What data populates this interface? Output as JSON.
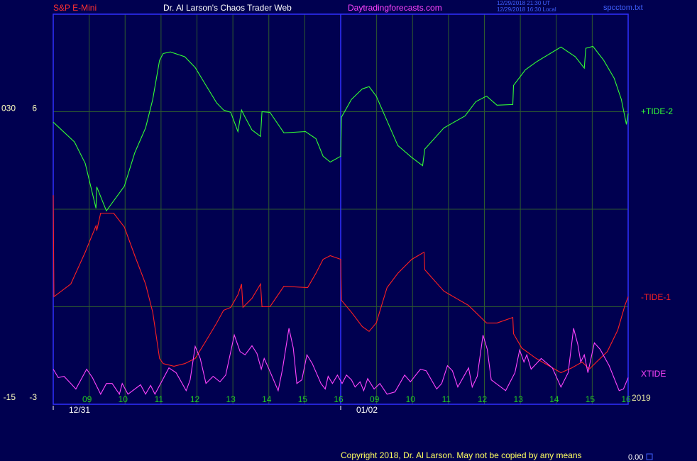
{
  "chart_data": {
    "type": "line",
    "instrument": "S&P E-Mini",
    "title": "Dr. Al Larson's Chaos Trader Web",
    "website": "Daytradingforecasts.com",
    "timestamps": [
      "12/29/2018 21:30 UT",
      "12/29/2018 16:30 Local"
    ],
    "file_name": "spcctom.txt",
    "year": "2019",
    "copyright": "Copyright 2018, Dr. Al Larson. May not be copied by any means",
    "status_value": "0.00",
    "xlim": [
      0,
      16
    ],
    "xticks": [
      {
        "value": 1,
        "label": "09"
      },
      {
        "value": 2,
        "label": "10"
      },
      {
        "value": 3,
        "label": "11"
      },
      {
        "value": 4,
        "label": "12"
      },
      {
        "value": 5,
        "label": "13"
      },
      {
        "value": 6,
        "label": "14"
      },
      {
        "value": 7,
        "label": "15"
      },
      {
        "value": 8,
        "label": "16"
      },
      {
        "value": 9,
        "label": "09"
      },
      {
        "value": 10,
        "label": "10"
      },
      {
        "value": 11,
        "label": "11"
      },
      {
        "value": 12,
        "label": "12"
      },
      {
        "value": 13,
        "label": "13"
      },
      {
        "value": 14,
        "label": "14"
      },
      {
        "value": 15,
        "label": "15"
      },
      {
        "value": 16,
        "label": "16"
      }
    ],
    "date_ticks": [
      {
        "value": 0,
        "label": "12/31"
      },
      {
        "value": 8,
        "label": "01/02"
      }
    ],
    "ylim": [
      -3,
      9
    ],
    "yticks": [
      6,
      -3
    ],
    "grid_y": [
      0,
      3,
      6
    ],
    "y2lim": [
      -15,
      45
    ],
    "y2ticks": [
      {
        "value": 30,
        "label": "030"
      },
      -15
    ],
    "grid": true,
    "series": [
      {
        "name": "+TIDE-2",
        "color": "#33ff33",
        "x": [
          0,
          0.59,
          0.89,
          1.19,
          1.21,
          1.48,
          1.98,
          2.27,
          2.57,
          2.77,
          2.96,
          3.06,
          3.26,
          3.66,
          3.95,
          4.25,
          4.55,
          4.74,
          4.94,
          5.14,
          5.24,
          5.34,
          5.53,
          5.77,
          5.81,
          6.03,
          6.42,
          7.02,
          7.31,
          7.51,
          7.71,
          8.0,
          8.02,
          8.3,
          8.6,
          8.79,
          8.99,
          9.29,
          9.59,
          9.98,
          10.28,
          10.34,
          10.87,
          11.46,
          11.76,
          12.06,
          12.35,
          12.79,
          12.81,
          13.14,
          13.44,
          13.83,
          14.13,
          14.53,
          14.78,
          14.82,
          15.02,
          15.32,
          15.61,
          15.81,
          15.95,
          16.0
        ],
        "values": [
          5.68,
          5.07,
          4.41,
          3.03,
          3.69,
          2.95,
          3.71,
          4.74,
          5.5,
          6.38,
          7.58,
          7.79,
          7.84,
          7.69,
          7.36,
          6.81,
          6.27,
          6.05,
          5.98,
          5.39,
          6.05,
          5.83,
          5.44,
          5.24,
          6.0,
          5.98,
          5.35,
          5.39,
          5.17,
          4.63,
          4.45,
          4.63,
          5.83,
          6.38,
          6.7,
          6.77,
          6.48,
          5.72,
          4.96,
          4.59,
          4.34,
          4.85,
          5.5,
          5.87,
          6.31,
          6.48,
          6.2,
          6.22,
          6.81,
          7.29,
          7.53,
          7.79,
          7.99,
          7.69,
          7.34,
          7.95,
          8.01,
          7.58,
          7.03,
          6.38,
          5.61,
          5.94
        ]
      },
      {
        "name": "-TIDE-1",
        "color": "#ff2020",
        "x": [
          0,
          0.02,
          0.49,
          0.89,
          1.19,
          1.21,
          1.32,
          1.68,
          1.98,
          2.27,
          2.57,
          2.77,
          2.96,
          3.06,
          3.36,
          3.66,
          3.95,
          4.25,
          4.55,
          4.74,
          4.94,
          5.14,
          5.24,
          5.28,
          5.53,
          5.77,
          5.81,
          6.03,
          6.42,
          7.08,
          7.31,
          7.51,
          7.71,
          8.0,
          8.02,
          8.3,
          8.6,
          8.79,
          8.99,
          9.29,
          9.59,
          9.98,
          10.32,
          10.34,
          10.87,
          11.56,
          12.06,
          12.35,
          12.79,
          12.81,
          13.04,
          13.44,
          14.13,
          14.43,
          14.72,
          14.92,
          15.12,
          15.42,
          15.71,
          15.91,
          16.0
        ],
        "values": [
          3.43,
          0.31,
          0.7,
          1.68,
          2.49,
          2.34,
          2.88,
          2.88,
          2.45,
          1.57,
          0.7,
          -0.17,
          -1.59,
          -1.75,
          -1.83,
          -1.75,
          -1.59,
          -1.05,
          -0.5,
          -0.11,
          -0.02,
          0.37,
          0.7,
          -0.02,
          0.26,
          0.7,
          0.0,
          0.0,
          0.63,
          0.59,
          1.03,
          1.46,
          1.57,
          1.46,
          0.2,
          -0.17,
          -0.61,
          -0.76,
          -0.5,
          0.59,
          1.03,
          1.46,
          1.68,
          1.14,
          0.48,
          0.04,
          -0.5,
          -0.5,
          -0.33,
          -0.83,
          -1.27,
          -1.59,
          -2.03,
          -1.88,
          -1.7,
          -1.92,
          -1.7,
          -1.38,
          -0.72,
          0.04,
          0.31
        ]
      },
      {
        "name": "XTIDE",
        "color": "#ff44ff",
        "x": [
          0,
          0.14,
          0.3,
          0.49,
          0.63,
          0.93,
          1.09,
          1.32,
          1.48,
          1.64,
          1.84,
          1.92,
          2.08,
          2.43,
          2.57,
          2.71,
          2.83,
          3.22,
          3.42,
          3.7,
          3.81,
          3.95,
          4.09,
          4.25,
          4.45,
          4.64,
          4.8,
          5.04,
          5.2,
          5.34,
          5.53,
          5.67,
          5.79,
          5.87,
          5.99,
          6.26,
          6.38,
          6.56,
          6.68,
          6.78,
          6.92,
          7.06,
          7.21,
          7.45,
          7.57,
          7.65,
          7.77,
          7.91,
          8.04,
          8.16,
          8.3,
          8.4,
          8.54,
          8.64,
          8.75,
          8.93,
          9.09,
          9.29,
          9.51,
          9.78,
          9.94,
          10.22,
          10.38,
          10.67,
          10.81,
          10.97,
          11.11,
          11.26,
          11.56,
          11.66,
          11.8,
          11.96,
          12.08,
          12.19,
          12.59,
          12.85,
          12.98,
          13.1,
          13.18,
          13.3,
          13.58,
          13.89,
          14.13,
          14.33,
          14.48,
          14.6,
          14.68,
          14.78,
          14.88,
          15.06,
          15.22,
          15.47,
          15.75,
          15.87,
          16.0
        ],
        "values": [
          -1.92,
          -2.18,
          -2.14,
          -2.36,
          -2.53,
          -1.92,
          -2.18,
          -2.69,
          -2.36,
          -2.36,
          -2.69,
          -2.36,
          -2.69,
          -2.4,
          -2.69,
          -2.42,
          -2.69,
          -1.88,
          -2.03,
          -2.58,
          -2.25,
          -1.22,
          -1.59,
          -2.36,
          -2.14,
          -2.31,
          -2.1,
          -0.87,
          -1.38,
          -1.48,
          -1.2,
          -1.44,
          -1.92,
          -1.59,
          -1.88,
          -2.58,
          -1.92,
          -0.66,
          -1.27,
          -2.36,
          -2.25,
          -1.48,
          -1.75,
          -2.36,
          -2.53,
          -2.14,
          -2.36,
          -2.1,
          -2.36,
          -2.1,
          -2.25,
          -2.47,
          -2.31,
          -2.58,
          -2.21,
          -2.53,
          -2.36,
          -2.69,
          -2.62,
          -2.1,
          -2.31,
          -1.92,
          -1.97,
          -2.53,
          -2.36,
          -1.81,
          -1.97,
          -2.47,
          -1.88,
          -2.47,
          -2.14,
          -0.87,
          -1.31,
          -2.25,
          -2.58,
          -2.03,
          -1.33,
          -1.7,
          -1.48,
          -1.92,
          -1.59,
          -1.88,
          -2.47,
          -2.03,
          -0.66,
          -1.16,
          -1.7,
          -1.48,
          -2.03,
          -1.11,
          -1.31,
          -1.81,
          -2.58,
          -2.53,
          -2.18
        ]
      }
    ]
  }
}
